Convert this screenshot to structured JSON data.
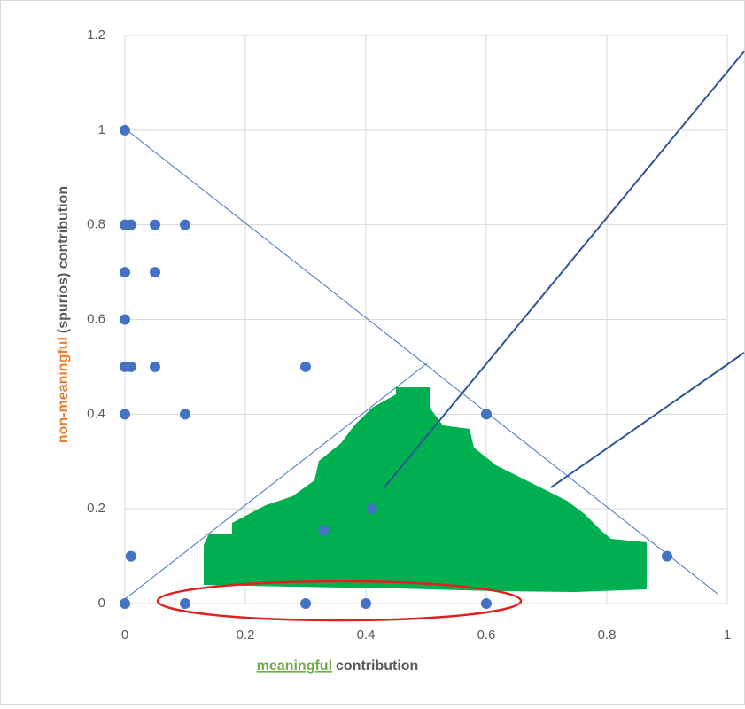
{
  "chart_data": {
    "type": "scatter",
    "x_label_highlight": "meaningful",
    "x_label_rest": "contribution",
    "y_label_highlight": "non-meaningful",
    "y_label_rest": "(spurios) contribution",
    "color": "#4472c4",
    "x": [
      0,
      0,
      0.01,
      0.05,
      0.1,
      0,
      0.05,
      0,
      0,
      0.01,
      0.05,
      0.3,
      0,
      0.1,
      0.6,
      0.01,
      0.9,
      0,
      0.1,
      0.3,
      0.4,
      0.6,
      0.41,
      0.33
    ],
    "y": [
      1,
      0.8,
      0.8,
      0.8,
      0.8,
      0.7,
      0.7,
      0.6,
      0.5,
      0.5,
      0.5,
      0.5,
      0.4,
      0.4,
      0.4,
      0.1,
      0.1,
      0,
      0,
      0,
      0,
      0,
      0.2,
      0.155
    ],
    "xlim": [
      0,
      1
    ],
    "xticks": [
      0,
      0.2,
      0.4,
      0.6,
      0.8,
      1
    ],
    "ylim": [
      0,
      1.2
    ],
    "yticks": [
      0,
      0.2,
      0.4,
      0.6,
      0.8,
      1,
      1.2
    ],
    "grid": true
  }
}
